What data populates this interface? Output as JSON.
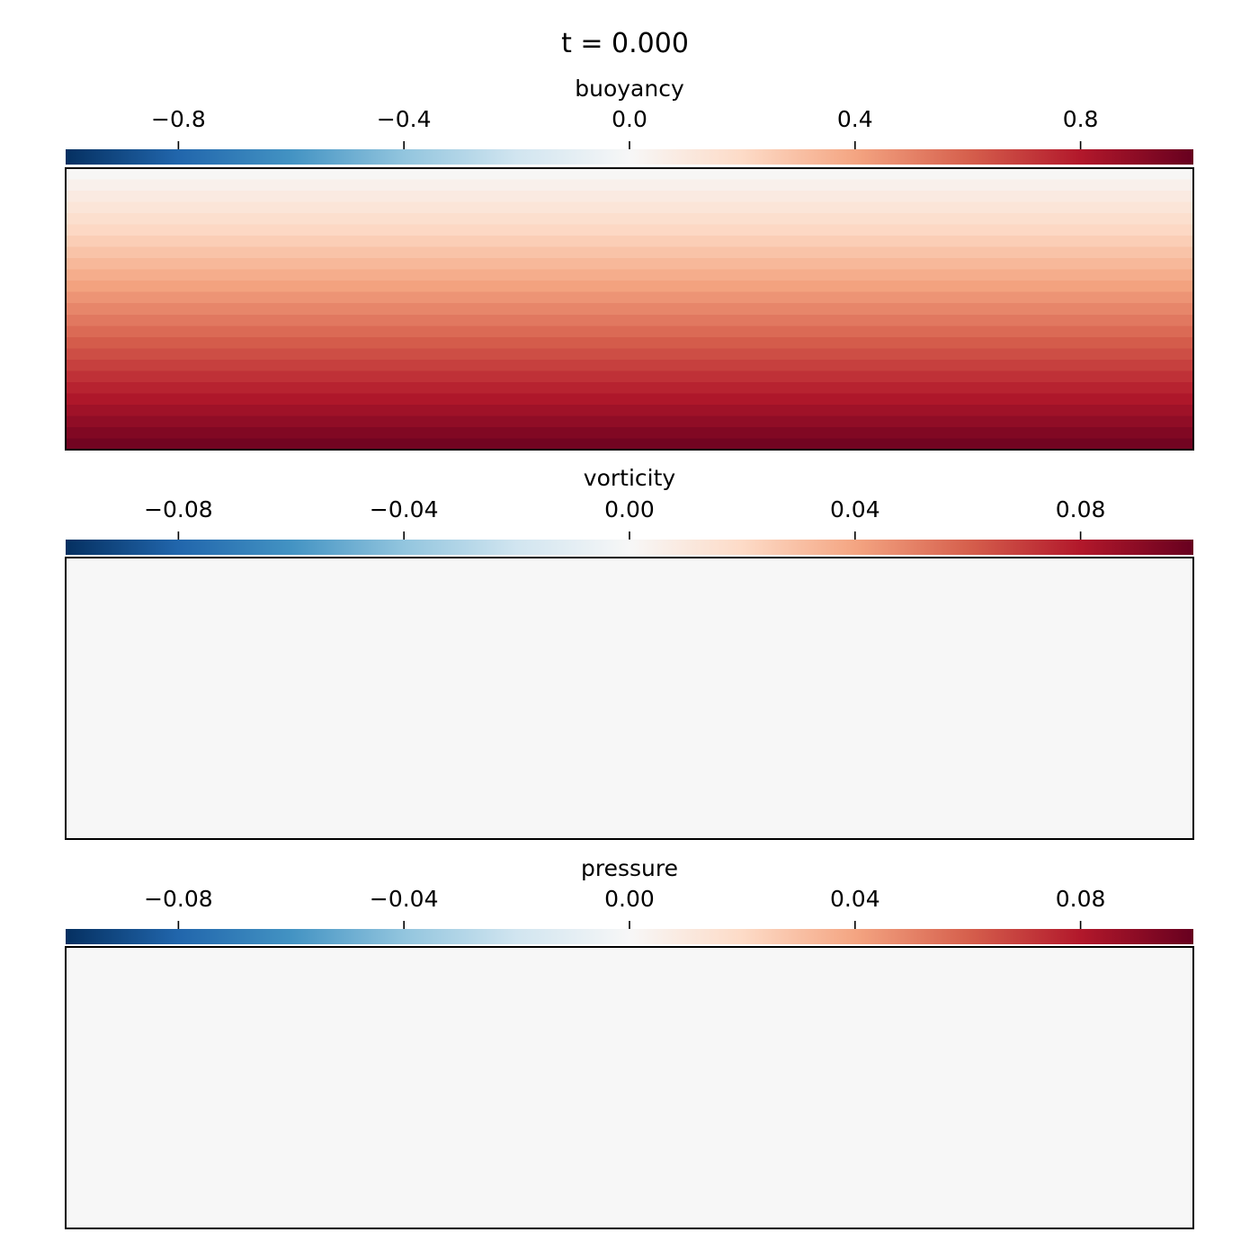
{
  "figure": {
    "title": "t = 0.000"
  },
  "chart_data": [
    {
      "type": "heatmap",
      "title": "buoyancy",
      "colormap": "RdBu_r",
      "colorbar_position": "top",
      "vlim": [
        -1.0,
        1.0
      ],
      "ticks": [
        -0.8,
        -0.4,
        0.0,
        0.4,
        0.8
      ],
      "tick_labels": [
        "−0.8",
        "−0.4",
        "0.0",
        "0.4",
        "0.8"
      ],
      "field": {
        "description_rows": "values from top row to bottom row; uniform across x",
        "row_values": [
          0.01,
          0.05,
          0.09,
          0.13,
          0.17,
          0.21,
          0.25,
          0.29,
          0.33,
          0.37,
          0.41,
          0.45,
          0.49,
          0.53,
          0.57,
          0.61,
          0.65,
          0.69,
          0.73,
          0.77,
          0.81,
          0.85,
          0.89,
          0.93,
          0.97
        ]
      }
    },
    {
      "type": "heatmap",
      "title": "vorticity",
      "colormap": "RdBu_r",
      "colorbar_position": "top",
      "vlim": [
        -0.1,
        0.1
      ],
      "ticks": [
        -0.08,
        -0.04,
        0.0,
        0.04,
        0.08
      ],
      "tick_labels": [
        "−0.08",
        "−0.04",
        "0.00",
        "0.04",
        "0.08"
      ],
      "field": {
        "description_rows": "uniform field",
        "row_values": [
          0.0
        ]
      }
    },
    {
      "type": "heatmap",
      "title": "pressure",
      "colormap": "RdBu_r",
      "colorbar_position": "top",
      "vlim": [
        -0.1,
        0.1
      ],
      "ticks": [
        -0.08,
        -0.04,
        0.0,
        0.04,
        0.08
      ],
      "tick_labels": [
        "−0.08",
        "−0.04",
        "0.00",
        "0.04",
        "0.08"
      ],
      "field": {
        "description_rows": "uniform field",
        "row_values": [
          0.0
        ]
      }
    }
  ],
  "colors": {
    "colormap_stops": [
      "#053061",
      "#2166ac",
      "#4393c3",
      "#92c5de",
      "#d1e5f0",
      "#f7f7f7",
      "#fddbc7",
      "#f4a582",
      "#d6604d",
      "#b2182b",
      "#67001f"
    ],
    "frame": "#000000"
  }
}
